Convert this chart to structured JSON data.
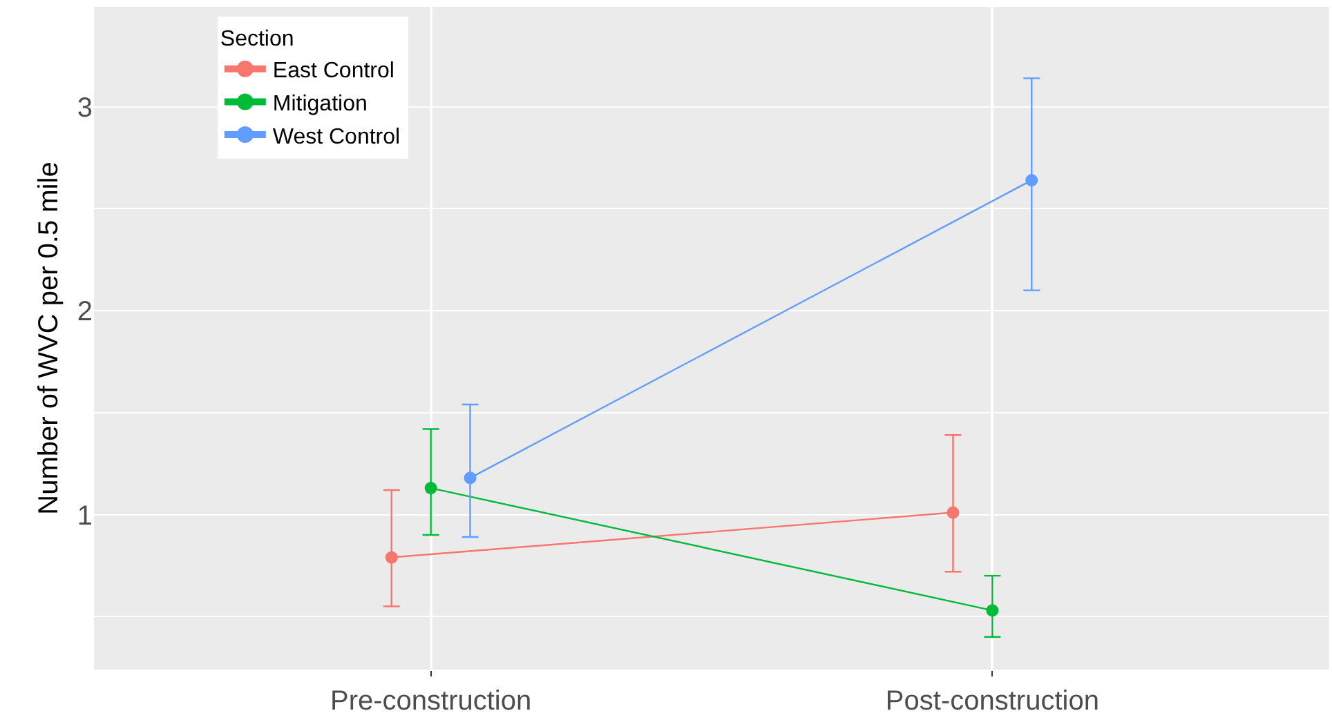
{
  "chart_data": {
    "type": "line",
    "categories": [
      "Pre-construction",
      "Post-construction"
    ],
    "ylabel": "Number of WVC per 0.5 mile",
    "legend_title": "Section",
    "ylim": [
      0.24,
      3.49
    ],
    "yticks": [
      {
        "value": 0.5,
        "label": null
      },
      1,
      {
        "value": 1.5,
        "label": null
      },
      2,
      {
        "value": 2.5,
        "label": null
      },
      3
    ],
    "grid": true,
    "legend": "top left",
    "marker": "circle",
    "line_style": "solid",
    "series": [
      {
        "name": "East Control",
        "color": "#f8766d",
        "values": [
          0.79,
          1.01
        ],
        "errors": [
          [
            0.55,
            1.12
          ],
          [
            0.72,
            1.39
          ]
        ]
      },
      {
        "name": "Mitigation",
        "color": "#00ba38",
        "values": [
          1.13,
          0.53
        ],
        "errors": [
          [
            0.9,
            1.42
          ],
          [
            0.4,
            0.7
          ]
        ]
      },
      {
        "name": "West Control",
        "color": "#619cff",
        "values": [
          1.18,
          2.64
        ],
        "errors": [
          [
            0.89,
            1.54
          ],
          [
            2.1,
            3.14
          ]
        ]
      }
    ]
  }
}
